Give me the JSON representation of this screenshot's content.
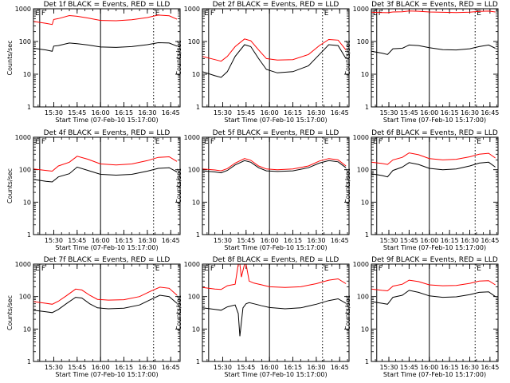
{
  "figure": {
    "detector_names": [
      "1f",
      "2f",
      "3f",
      "4f",
      "5f",
      "6f",
      "7f",
      "8f",
      "9f"
    ]
  },
  "chart_data": [
    {
      "type": "line",
      "title": "Det 1f BLACK = Events, RED = LLD",
      "xlabel": "Start Time (07-Feb-10 15:17:00)",
      "ylabel": "Counts/sec",
      "yscale": "log",
      "ylim": [
        1,
        1000
      ],
      "x_ticks": [
        "15:30",
        "15:45",
        "16:00",
        "16:15",
        "16:30",
        "16:45"
      ],
      "y_ticks": [
        "1",
        "10",
        "100",
        "1000"
      ],
      "markers": [
        {
          "label": "E",
          "time": "15:17"
        },
        {
          "label": "F",
          "time": "15:21"
        },
        {
          "label": "E",
          "time": "16:34"
        }
      ],
      "series": [
        {
          "name": "BLACK",
          "color": "#000000",
          "x": [
            "15:17",
            "15:25",
            "15:29",
            "15:30",
            "15:33",
            "15:40",
            "15:45",
            "15:52",
            "16:00",
            "16:10",
            "16:20",
            "16:30",
            "16:37",
            "16:44",
            "16:49"
          ],
          "y": [
            62,
            55,
            50,
            72,
            75,
            90,
            86,
            78,
            68,
            66,
            70,
            80,
            92,
            90,
            72
          ]
        },
        {
          "name": "RED",
          "color": "#ff0000",
          "x": [
            "15:17",
            "15:25",
            "15:29",
            "15:30",
            "15:33",
            "15:40",
            "15:45",
            "15:52",
            "16:00",
            "16:10",
            "16:20",
            "16:30",
            "16:37",
            "16:44",
            "16:49"
          ],
          "y": [
            410,
            360,
            330,
            470,
            500,
            620,
            590,
            520,
            440,
            430,
            460,
            540,
            640,
            610,
            480
          ]
        }
      ]
    },
    {
      "type": "line",
      "title": "Det 2f BLACK = Events, RED = LLD",
      "xlabel": "Start Time (07-Feb-10 15:17:00)",
      "ylabel": "Counts/sec",
      "yscale": "log",
      "ylim": [
        1,
        1000
      ],
      "x_ticks": [
        "15:30",
        "15:45",
        "16:00",
        "16:15",
        "16:30",
        "16:45"
      ],
      "y_ticks": [
        "1",
        "10",
        "100",
        "1000"
      ],
      "markers": [
        {
          "label": "E",
          "time": "15:17"
        },
        {
          "label": "F",
          "time": "15:21"
        },
        {
          "label": "E",
          "time": "16:34"
        }
      ],
      "series": [
        {
          "name": "BLACK",
          "color": "#000000",
          "x": [
            "15:17",
            "15:25",
            "15:29",
            "15:33",
            "15:38",
            "15:44",
            "15:48",
            "15:53",
            "15:58",
            "16:05",
            "16:15",
            "16:25",
            "16:32",
            "16:38",
            "16:44",
            "16:49"
          ],
          "y": [
            12,
            9,
            8,
            12,
            35,
            80,
            70,
            30,
            14,
            11,
            12,
            18,
            40,
            80,
            75,
            30
          ]
        },
        {
          "name": "RED",
          "color": "#ff0000",
          "x": [
            "15:17",
            "15:25",
            "15:29",
            "15:33",
            "15:38",
            "15:44",
            "15:48",
            "15:53",
            "15:58",
            "16:05",
            "16:15",
            "16:25",
            "16:32",
            "16:38",
            "16:44",
            "16:49"
          ],
          "y": [
            35,
            28,
            25,
            35,
            70,
            120,
            105,
            55,
            30,
            27,
            28,
            40,
            75,
            115,
            110,
            55
          ]
        }
      ]
    },
    {
      "type": "line",
      "title": "Det 3f BLACK = Events, RED = LLD",
      "xlabel": "Start Time (07-Feb-10 15:17:00)",
      "ylabel": "Counts/sec",
      "yscale": "log",
      "ylim": [
        1,
        1000
      ],
      "x_ticks": [
        "15:30",
        "15:45",
        "16:00",
        "16:15",
        "16:30",
        "16:45"
      ],
      "y_ticks": [
        "1",
        "10",
        "100",
        "1000"
      ],
      "markers": [
        {
          "label": "E",
          "time": "15:17"
        },
        {
          "label": "F",
          "time": "15:21"
        },
        {
          "label": "E",
          "time": "16:34"
        }
      ],
      "series": [
        {
          "name": "BLACK",
          "color": "#000000",
          "x": [
            "15:17",
            "15:25",
            "15:29",
            "15:33",
            "15:40",
            "15:45",
            "15:52",
            "16:00",
            "16:10",
            "16:20",
            "16:30",
            "16:37",
            "16:44",
            "16:49"
          ],
          "y": [
            50,
            44,
            40,
            60,
            62,
            78,
            75,
            65,
            56,
            55,
            60,
            70,
            78,
            62
          ]
        },
        {
          "name": "RED",
          "color": "#ff0000",
          "x": [
            "15:17",
            "15:25",
            "15:29",
            "15:33",
            "15:40",
            "15:45",
            "15:52",
            "16:00",
            "16:10",
            "16:20",
            "16:30",
            "16:37",
            "16:44",
            "16:49"
          ],
          "y": [
            780,
            770,
            760,
            800,
            810,
            860,
            840,
            800,
            780,
            770,
            790,
            830,
            850,
            800
          ]
        }
      ]
    },
    {
      "type": "line",
      "title": "Det 4f BLACK = Events, RED = LLD",
      "xlabel": "Start Time (07-Feb-10 15:17:00)",
      "ylabel": "Counts/sec",
      "yscale": "log",
      "ylim": [
        1,
        1000
      ],
      "x_ticks": [
        "15:30",
        "15:45",
        "16:00",
        "16:15",
        "16:30",
        "16:45"
      ],
      "y_ticks": [
        "1",
        "10",
        "100",
        "1000"
      ],
      "markers": [
        {
          "label": "E",
          "time": "15:17"
        },
        {
          "label": "F",
          "time": "15:21"
        },
        {
          "label": "E",
          "time": "16:34"
        }
      ],
      "series": [
        {
          "name": "BLACK",
          "color": "#000000",
          "x": [
            "15:17",
            "15:25",
            "15:29",
            "15:33",
            "15:40",
            "15:45",
            "15:52",
            "16:00",
            "16:10",
            "16:20",
            "16:30",
            "16:37",
            "16:44",
            "16:49"
          ],
          "y": [
            50,
            44,
            42,
            60,
            75,
            120,
            95,
            72,
            68,
            72,
            90,
            110,
            115,
            85
          ]
        },
        {
          "name": "RED",
          "color": "#ff0000",
          "x": [
            "15:17",
            "15:25",
            "15:29",
            "15:33",
            "15:40",
            "15:45",
            "15:52",
            "16:00",
            "16:10",
            "16:20",
            "16:30",
            "16:37",
            "16:44",
            "16:49"
          ],
          "y": [
            105,
            95,
            90,
            130,
            170,
            260,
            210,
            150,
            140,
            150,
            190,
            240,
            250,
            180
          ]
        }
      ]
    },
    {
      "type": "line",
      "title": "Det 5f BLACK = Events, RED = LLD",
      "xlabel": "Start Time (07-Feb-10 15:17:00)",
      "ylabel": "Counts/sec",
      "yscale": "log",
      "ylim": [
        1,
        1000
      ],
      "x_ticks": [
        "15:30",
        "15:45",
        "16:00",
        "16:15",
        "16:30",
        "16:45"
      ],
      "y_ticks": [
        "1",
        "10",
        "100",
        "1000"
      ],
      "markers": [
        {
          "label": "E",
          "time": "15:17"
        },
        {
          "label": "F",
          "time": "15:21"
        },
        {
          "label": "E",
          "time": "16:34"
        }
      ],
      "series": [
        {
          "name": "BLACK",
          "color": "#000000",
          "x": [
            "15:17",
            "15:25",
            "15:29",
            "15:33",
            "15:38",
            "15:44",
            "15:48",
            "15:53",
            "15:58",
            "16:05",
            "16:15",
            "16:25",
            "16:32",
            "16:38",
            "16:44",
            "16:49"
          ],
          "y": [
            92,
            85,
            80,
            95,
            140,
            190,
            170,
            115,
            92,
            88,
            92,
            115,
            160,
            190,
            175,
            115
          ]
        },
        {
          "name": "RED",
          "color": "#ff0000",
          "x": [
            "15:17",
            "15:25",
            "15:29",
            "15:33",
            "15:38",
            "15:44",
            "15:48",
            "15:53",
            "15:58",
            "16:05",
            "16:15",
            "16:25",
            "16:32",
            "16:38",
            "16:44",
            "16:49"
          ],
          "y": [
            105,
            98,
            92,
            108,
            160,
            220,
            195,
            130,
            105,
            100,
            105,
            130,
            185,
            220,
            200,
            130
          ]
        }
      ]
    },
    {
      "type": "line",
      "title": "Det 6f BLACK = Events, RED = LLD",
      "xlabel": "Start Time (07-Feb-10 15:17:00)",
      "ylabel": "Counts/sec",
      "yscale": "log",
      "ylim": [
        1,
        1000
      ],
      "x_ticks": [
        "15:30",
        "15:45",
        "16:00",
        "16:15",
        "16:30",
        "16:45"
      ],
      "y_ticks": [
        "1",
        "10",
        "100",
        "1000"
      ],
      "markers": [
        {
          "label": "E",
          "time": "15:17"
        },
        {
          "label": "F",
          "time": "15:21"
        },
        {
          "label": "E",
          "time": "16:34"
        }
      ],
      "series": [
        {
          "name": "BLACK",
          "color": "#000000",
          "x": [
            "15:17",
            "15:25",
            "15:29",
            "15:33",
            "15:40",
            "15:45",
            "15:52",
            "16:00",
            "16:10",
            "16:20",
            "16:30",
            "16:37",
            "16:44",
            "16:49"
          ],
          "y": [
            75,
            66,
            60,
            95,
            120,
            165,
            145,
            110,
            100,
            105,
            130,
            160,
            170,
            120
          ]
        },
        {
          "name": "RED",
          "color": "#ff0000",
          "x": [
            "15:17",
            "15:25",
            "15:29",
            "15:33",
            "15:40",
            "15:45",
            "15:52",
            "16:00",
            "16:10",
            "16:20",
            "16:30",
            "16:37",
            "16:44",
            "16:49"
          ],
          "y": [
            170,
            155,
            145,
            200,
            240,
            330,
            290,
            220,
            200,
            210,
            250,
            300,
            320,
            230
          ]
        }
      ]
    },
    {
      "type": "line",
      "title": "Det 7f BLACK = Events, RED = LLD",
      "xlabel": "Start Time (07-Feb-10 15:17:00)",
      "ylabel": "Counts/sec",
      "yscale": "log",
      "ylim": [
        1,
        1000
      ],
      "x_ticks": [
        "15:30",
        "15:45",
        "16:00",
        "16:15",
        "16:30",
        "16:45"
      ],
      "y_ticks": [
        "1",
        "10",
        "100",
        "1000"
      ],
      "markers": [
        {
          "label": "E",
          "time": "15:17"
        },
        {
          "label": "F",
          "time": "15:21"
        },
        {
          "label": "E",
          "time": "16:34"
        }
      ],
      "series": [
        {
          "name": "BLACK",
          "color": "#000000",
          "x": [
            "15:17",
            "15:25",
            "15:29",
            "15:33",
            "15:38",
            "15:44",
            "15:48",
            "15:53",
            "15:58",
            "16:05",
            "16:15",
            "16:25",
            "16:32",
            "16:38",
            "16:44",
            "16:49"
          ],
          "y": [
            38,
            34,
            32,
            40,
            60,
            95,
            90,
            60,
            45,
            42,
            44,
            55,
            80,
            110,
            100,
            62
          ]
        },
        {
          "name": "RED",
          "color": "#ff0000",
          "x": [
            "15:17",
            "15:25",
            "15:29",
            "15:33",
            "15:38",
            "15:44",
            "15:48",
            "15:53",
            "15:58",
            "16:05",
            "16:15",
            "16:25",
            "16:32",
            "16:38",
            "16:44",
            "16:49"
          ],
          "y": [
            70,
            62,
            58,
            72,
            105,
            170,
            160,
            110,
            82,
            78,
            80,
            100,
            145,
            195,
            180,
            110
          ]
        }
      ]
    },
    {
      "type": "line",
      "title": "Det 8f BLACK = Events, RED = LLD",
      "xlabel": "Start Time (07-Feb-10 15:17:00)",
      "ylabel": "Counts/sec",
      "yscale": "log",
      "ylim": [
        1,
        1000
      ],
      "x_ticks": [
        "15:30",
        "15:45",
        "16:00",
        "16:15",
        "16:30",
        "16:45"
      ],
      "y_ticks": [
        "1",
        "10",
        "100",
        "1000"
      ],
      "markers": [
        {
          "label": "E",
          "time": "15:17"
        },
        {
          "label": "F",
          "time": "15:21"
        },
        {
          "label": "E",
          "time": "16:34"
        }
      ],
      "series": [
        {
          "name": "BLACK",
          "color": "#000000",
          "x": [
            "15:17",
            "15:25",
            "15:29",
            "15:33",
            "15:38",
            "15:40",
            "15:41",
            "15:43",
            "15:45",
            "15:47",
            "15:50",
            "15:55",
            "16:00",
            "16:10",
            "16:20",
            "16:30",
            "16:38",
            "16:44",
            "16:49"
          ],
          "y": [
            45,
            40,
            38,
            48,
            55,
            30,
            6,
            45,
            60,
            65,
            60,
            52,
            46,
            42,
            45,
            58,
            75,
            85,
            62
          ]
        },
        {
          "name": "RED",
          "color": "#ff0000",
          "x": [
            "15:17",
            "15:25",
            "15:29",
            "15:33",
            "15:38",
            "15:40",
            "15:41",
            "15:42",
            "15:44",
            "15:45",
            "15:47",
            "15:50",
            "15:55",
            "16:00",
            "16:10",
            "16:20",
            "16:30",
            "16:38",
            "16:44",
            "16:49"
          ],
          "y": [
            190,
            170,
            165,
            215,
            240,
            1000,
            1000,
            400,
            1000,
            1000,
            300,
            260,
            230,
            200,
            190,
            200,
            250,
            320,
            350,
            250
          ]
        }
      ]
    },
    {
      "type": "line",
      "title": "Det 9f BLACK = Events, RED = LLD",
      "xlabel": "Start Time (07-Feb-10 15:17:00)",
      "ylabel": "Counts/sec",
      "yscale": "log",
      "ylim": [
        1,
        1000
      ],
      "x_ticks": [
        "15:30",
        "15:45",
        "16:00",
        "16:15",
        "16:30",
        "16:45"
      ],
      "y_ticks": [
        "1",
        "10",
        "100",
        "1000"
      ],
      "markers": [
        {
          "label": "E",
          "time": "15:17"
        },
        {
          "label": "F",
          "time": "15:21"
        },
        {
          "label": "E",
          "time": "16:34"
        }
      ],
      "series": [
        {
          "name": "BLACK",
          "color": "#000000",
          "x": [
            "15:17",
            "15:25",
            "15:29",
            "15:33",
            "15:40",
            "15:45",
            "15:52",
            "16:00",
            "16:10",
            "16:20",
            "16:30",
            "16:37",
            "16:44",
            "16:49"
          ],
          "y": [
            70,
            62,
            58,
            95,
            110,
            155,
            135,
            105,
            95,
            98,
            115,
            135,
            140,
            100
          ]
        },
        {
          "name": "RED",
          "color": "#ff0000",
          "x": [
            "15:17",
            "15:25",
            "15:29",
            "15:33",
            "15:40",
            "15:45",
            "15:52",
            "16:00",
            "16:10",
            "16:20",
            "16:30",
            "16:37",
            "16:44",
            "16:49"
          ],
          "y": [
            170,
            155,
            150,
            210,
            240,
            320,
            290,
            230,
            215,
            220,
            255,
            300,
            310,
            230
          ]
        }
      ]
    }
  ]
}
